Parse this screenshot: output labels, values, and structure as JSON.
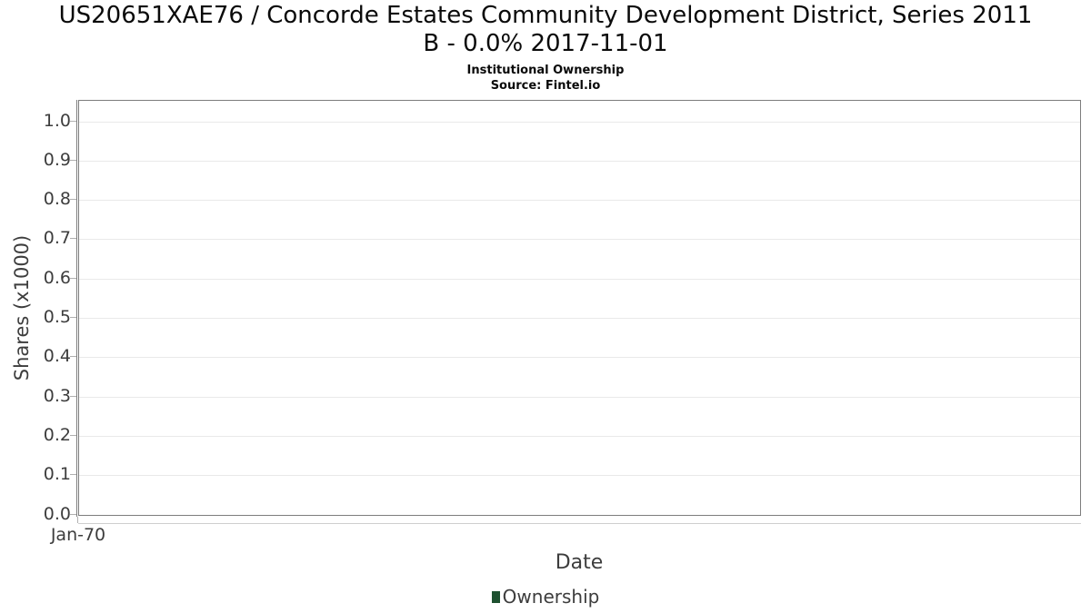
{
  "header": {
    "title_line1": "US20651XAE76 / Concorde Estates Community Development District, Series 2011",
    "title_line2": "B - 0.0% 2017-11-01",
    "subtitle": "Institutional Ownership",
    "source": "Source: Fintel.io"
  },
  "chart_data": {
    "type": "bar",
    "title": "US20651XAE76 / Concorde Estates Community Development District, Series 2011 B - 0.0% 2017-11-01",
    "subtitle": "Institutional Ownership",
    "source": "Source: Fintel.io",
    "xlabel": "Date",
    "ylabel": "Shares (x1000)",
    "x_tick_labels": [
      "Jan-70"
    ],
    "y_tick_labels": [
      "0.0",
      "0.1",
      "0.2",
      "0.3",
      "0.4",
      "0.5",
      "0.6",
      "0.7",
      "0.8",
      "0.9",
      "1.0"
    ],
    "y_ticks": [
      0,
      0.1,
      0.2,
      0.3,
      0.4,
      0.5,
      0.6,
      0.7,
      0.8,
      0.9,
      1.0
    ],
    "ylim": [
      0,
      1.05
    ],
    "grid": "horizontal",
    "legend": {
      "position": "bottom-center",
      "entries": [
        {
          "label": "Ownership",
          "color": "#1e5130"
        }
      ]
    },
    "categories": [
      "Jan-70"
    ],
    "series": [
      {
        "name": "Ownership",
        "values": []
      }
    ]
  },
  "style": {
    "background": "#ffffff",
    "title_color": "#0a0a0a",
    "axis_text_color": "#3d3d3d",
    "plot_border_color": "#7d7d7d",
    "gridline_color": "#e9e9e9",
    "x_axis_line_color": "#cfcfcf",
    "tick_color": "#b0b0b0",
    "legend_marker_color": "#1e5130"
  }
}
